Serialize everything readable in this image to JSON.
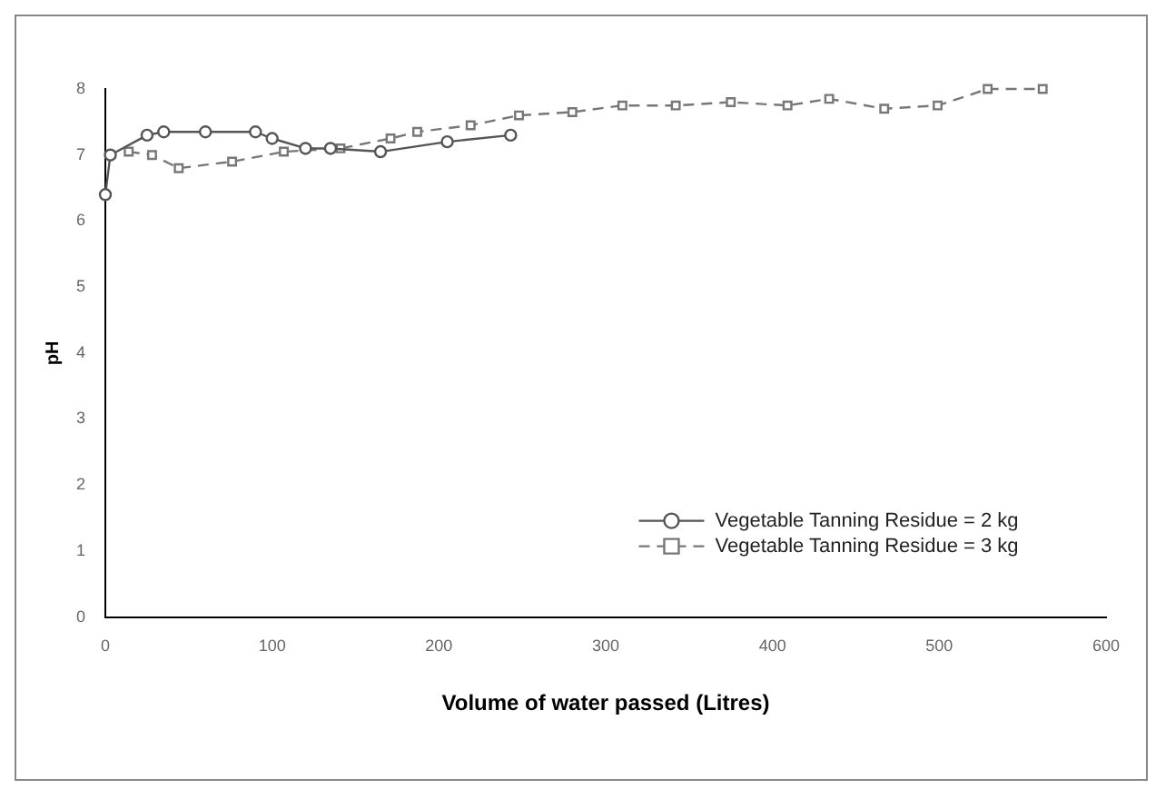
{
  "chart_data": {
    "type": "line",
    "xlabel": "Volume of water passed (Litres)",
    "ylabel": "pH",
    "xlim": [
      0,
      600
    ],
    "xticks": [
      0,
      100,
      200,
      300,
      400,
      500,
      600
    ],
    "ylim": [
      0,
      8
    ],
    "yticks": [
      0,
      1,
      2,
      3,
      4,
      5,
      6,
      7,
      8
    ],
    "grid": false,
    "legend": "bottom right",
    "series": [
      {
        "name": "Vegetable Tanning Residue = 2 kg",
        "color": "#555555",
        "marker": "circle",
        "line_style": "solid",
        "x": [
          0,
          3,
          25,
          35,
          60,
          90,
          100,
          120,
          135,
          165,
          205,
          243
        ],
        "values": [
          6.4,
          7.0,
          7.3,
          7.35,
          7.35,
          7.35,
          7.25,
          7.1,
          7.1,
          7.05,
          7.2,
          7.3
        ]
      },
      {
        "name": "Vegetable Tanning Residue = 3 kg",
        "color": "#777777",
        "marker": "square",
        "line_style": "dashed",
        "x": [
          14,
          28,
          44,
          76,
          107,
          141,
          171,
          187,
          219,
          248,
          280,
          310,
          342,
          375,
          409,
          434,
          467,
          499,
          529,
          562
        ],
        "values": [
          7.05,
          7.0,
          6.8,
          6.9,
          7.05,
          7.1,
          7.25,
          7.35,
          7.45,
          7.6,
          7.65,
          7.75,
          7.75,
          7.8,
          7.75,
          7.85,
          7.7,
          7.75,
          8.0,
          8.0
        ]
      }
    ]
  }
}
